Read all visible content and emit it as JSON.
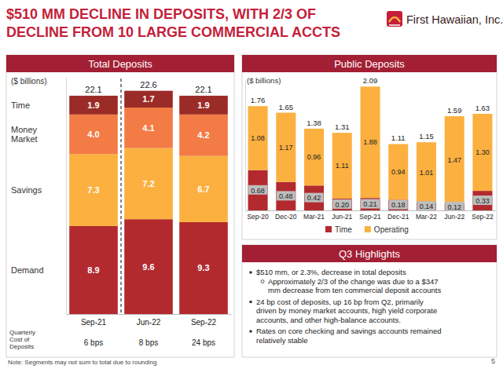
{
  "header": {
    "title": [
      "$510 MM DECLINE IN DEPOSITS, WITH 2/3 OF",
      "DECLINE FROM 10 LARGE COMMERCIAL ACCTS"
    ],
    "company": "First Hawaiian, Inc.",
    "page": 5
  },
  "chart_data": [
    {
      "type": "bar",
      "title": "Total Deposits",
      "subtitle": "($ billions)",
      "categories": [
        "Sep-21",
        "Jun-22",
        "Sep-22"
      ],
      "series": [
        {
          "name": "Demand",
          "color": "#b22a2e",
          "values": [
            8.9,
            9.6,
            9.3
          ]
        },
        {
          "name": "Savings",
          "color": "#fbb040",
          "values": [
            7.3,
            7.2,
            6.7
          ]
        },
        {
          "name": "Money Market",
          "color": "#f37b45",
          "values": [
            4.0,
            4.1,
            4.2
          ],
          "value_labels": [
            "4.0",
            "4.1",
            "4.2"
          ]
        },
        {
          "name": "Time",
          "color": "#9b2b26",
          "values": [
            1.9,
            1.7,
            1.9
          ]
        }
      ],
      "totals": [
        22.1,
        22.6,
        22.1
      ],
      "stacked": true,
      "data_labels": true,
      "tick_labels": "x",
      "legend": "left",
      "ylim": [
        0,
        24
      ],
      "cost_of_deposits": {
        "label": [
          "Quarterly",
          "Cost of",
          "Deposits"
        ],
        "labels": [
          "6 bps",
          "8 bps",
          "24 bps"
        ]
      },
      "note": "Note: Segments may not sum to total due to rounding"
    },
    {
      "type": "bar",
      "title": "Public Deposits",
      "subtitle": "($ billions)",
      "categories": [
        "Sep-20",
        "Dec-20",
        "Mar-21",
        "Jun-21",
        "Sep-21",
        "Dec-21",
        "Mar-22",
        "Jun-22",
        "Sep-22"
      ],
      "series": [
        {
          "name": "Time",
          "color": "#b22a2e",
          "values": [
            0.68,
            0.48,
            0.42,
            0.2,
            0.21,
            0.18,
            0.14,
            0.12,
            0.33
          ],
          "value_labels": [
            "0.68",
            "0.48",
            "0.42",
            "0.20",
            "0.21",
            "0.18",
            "0.14",
            "0.12",
            "0.33"
          ]
        },
        {
          "name": "Operating",
          "color": "#fbb040",
          "values": [
            1.08,
            1.17,
            0.96,
            1.11,
            1.88,
            0.94,
            1.01,
            1.47,
            1.3
          ],
          "value_labels": [
            "1.08",
            "1.17",
            "0.96",
            "1.11",
            "1.88",
            "0.94",
            "1.01",
            "1.47",
            "1.30"
          ]
        }
      ],
      "totals": [
        1.76,
        1.65,
        1.38,
        1.31,
        2.09,
        1.11,
        1.15,
        1.59,
        1.63
      ],
      "stacked": true,
      "data_labels": true,
      "tick_labels": "x",
      "legend": "bottom",
      "ylim": [
        0,
        2.2
      ]
    }
  ],
  "highlights": {
    "title": "Q3 Highlights",
    "bullets": [
      {
        "lines": [
          "$510 mm, or 2.3%, decrease in total deposits"
        ],
        "sub": [
          {
            "lines": [
              "Approximately 2/3 of the change was due to a $347",
              "mm decrease from ten commercial deposit accounts"
            ]
          }
        ]
      },
      {
        "lines": [
          "24 bp cost of deposits, up 16 bp from Q2, primarily",
          "driven by money market accounts, high yield corporate",
          "accounts, and other high-balance accounts."
        ]
      },
      {
        "lines": [
          "Rates on core checking and savings accounts remained",
          "relatively stable"
        ]
      }
    ]
  }
}
